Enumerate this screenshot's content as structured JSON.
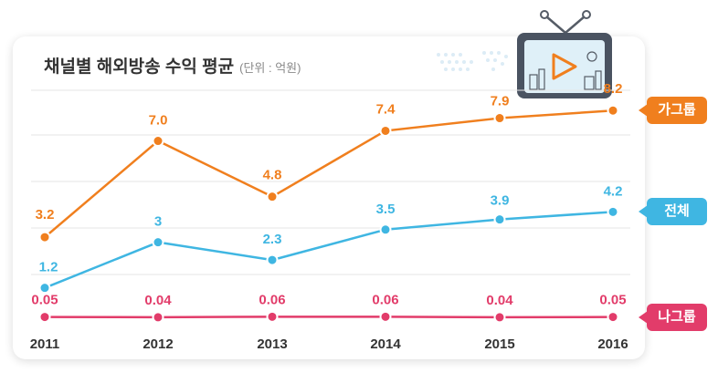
{
  "chart_data": {
    "type": "line",
    "title": "채널별 해외방송 수익 평균",
    "unit_label": "(단위 : 억원)",
    "categories": [
      "2011",
      "2012",
      "2013",
      "2014",
      "2015",
      "2016"
    ],
    "ylim": [
      0,
      9
    ],
    "grid": true,
    "series": [
      {
        "name": "가그룹",
        "color": "#f07f1e",
        "values": [
          3.2,
          7.0,
          4.8,
          7.4,
          7.9,
          8.2
        ],
        "labels": [
          "3.2",
          "7.0",
          "4.8",
          "7.4",
          "7.9",
          "8.2"
        ]
      },
      {
        "name": "전체",
        "color": "#3fb6e2",
        "values": [
          1.2,
          3,
          2.3,
          3.5,
          3.9,
          4.2
        ],
        "labels": [
          "1.2",
          "3",
          "2.3",
          "3.5",
          "3.9",
          "4.2"
        ]
      },
      {
        "name": "나그룹",
        "color": "#e23c6a",
        "values": [
          0.05,
          0.04,
          0.06,
          0.06,
          0.04,
          0.05
        ],
        "labels": [
          "0.05",
          "0.04",
          "0.06",
          "0.06",
          "0.04",
          "0.05"
        ]
      }
    ]
  }
}
